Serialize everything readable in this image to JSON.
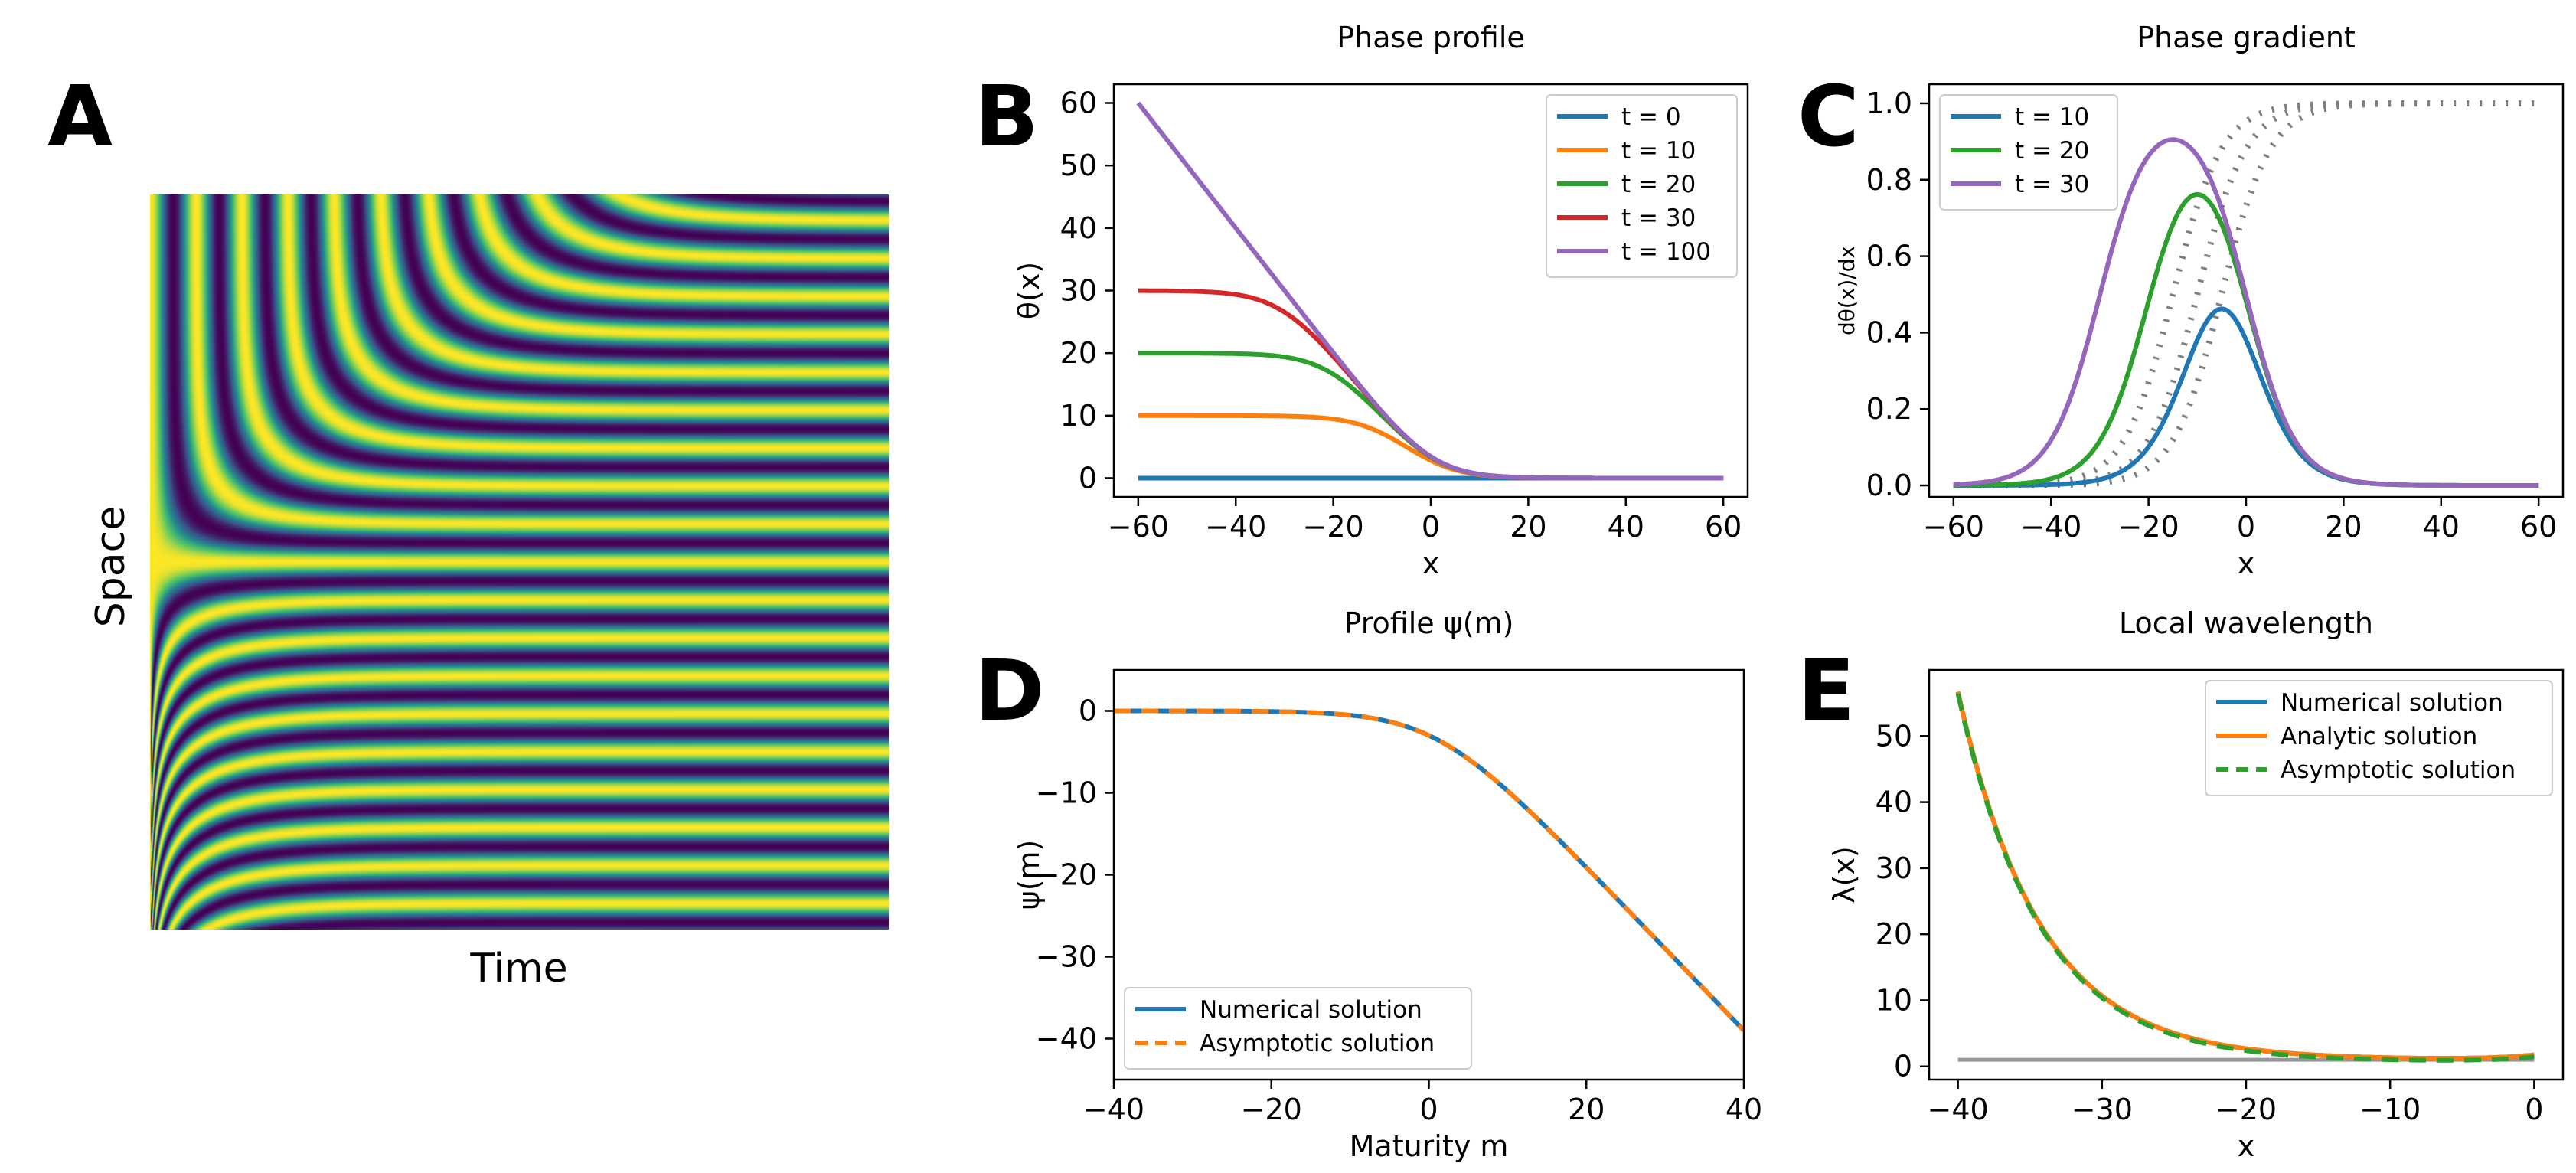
{
  "figure": {
    "panelA": {
      "letter": "A",
      "xlabel": "Time",
      "ylabel": "Space"
    }
  },
  "chart_data": [
    {
      "id": "B",
      "letter": "B",
      "type": "line",
      "title": "Phase profile",
      "xlabel": "x",
      "ylabel": "θ(x)",
      "xlim": [
        -65,
        65
      ],
      "ylim": [
        -3,
        63
      ],
      "xticks": [
        -60,
        -40,
        -20,
        0,
        20,
        40,
        60
      ],
      "yticks": [
        0,
        10,
        20,
        30,
        40,
        50,
        60
      ],
      "legend_position": "top-right",
      "grid": false,
      "series": [
        {
          "name": "t = 0",
          "color": "#1f77b4",
          "t": 0
        },
        {
          "name": "t = 10",
          "color": "#ff7f0e",
          "t": 10
        },
        {
          "name": "t = 20",
          "color": "#2ca02c",
          "t": 20
        },
        {
          "name": "t = 30",
          "color": "#d62728",
          "t": 30
        },
        {
          "name": "t = 100",
          "color": "#9467bd",
          "t": 100
        }
      ]
    },
    {
      "id": "C",
      "letter": "C",
      "type": "line",
      "title": "Phase gradient",
      "xlabel": "x",
      "ylabel": "dθ(x)/dx",
      "xlim": [
        -65,
        65
      ],
      "ylim": [
        -0.03,
        1.05
      ],
      "xticks": [
        -60,
        -40,
        -20,
        0,
        20,
        40,
        60
      ],
      "yticks": [
        0.0,
        0.2,
        0.4,
        0.6,
        0.8,
        1.0
      ],
      "legend_position": "top-left",
      "grid": false,
      "series": [
        {
          "name": "t = 10",
          "color": "#1f77b4",
          "t": 10
        },
        {
          "name": "t = 20",
          "color": "#2ca02c",
          "t": 20
        },
        {
          "name": "t = 30",
          "color": "#9467bd",
          "t": 30
        }
      ],
      "reference_curves": {
        "color": "#7f7f7f",
        "style": "dotted",
        "t": [
          10,
          20,
          30
        ]
      }
    },
    {
      "id": "D",
      "letter": "D",
      "type": "line",
      "title": "Profile ψ(m)",
      "xlabel": "Maturity m",
      "ylabel": "ψ(m)",
      "xlim": [
        -40,
        40
      ],
      "ylim": [
        -45,
        5
      ],
      "xticks": [
        -40,
        -20,
        0,
        20,
        40
      ],
      "yticks": [
        0,
        -10,
        -20,
        -30,
        -40
      ],
      "legend_position": "bottom-left",
      "grid": false,
      "series": [
        {
          "name": "Numerical solution",
          "color": "#1f77b4",
          "style": "solid"
        },
        {
          "name": "Asymptotic solution",
          "color": "#ff7f0e",
          "style": "dashed"
        }
      ]
    },
    {
      "id": "E",
      "letter": "E",
      "type": "line",
      "title": "Local wavelength",
      "xlabel": "x",
      "ylabel": "λ(x)",
      "xlim": [
        -42,
        2
      ],
      "ylim": [
        -2,
        60
      ],
      "xticks": [
        -40,
        -30,
        -20,
        -10,
        0
      ],
      "yticks": [
        0,
        10,
        20,
        30,
        40,
        50
      ],
      "legend_position": "top-right",
      "grid": false,
      "series": [
        {
          "name": "Numerical solution",
          "color": "#1f77b4",
          "style": "solid"
        },
        {
          "name": "Analytic solution",
          "color": "#ff7f0e",
          "style": "solid"
        },
        {
          "name": "Asymptotic solution",
          "color": "#2ca02c",
          "style": "dashed"
        }
      ],
      "baseline": {
        "value": 1,
        "color": "#999999"
      }
    }
  ]
}
